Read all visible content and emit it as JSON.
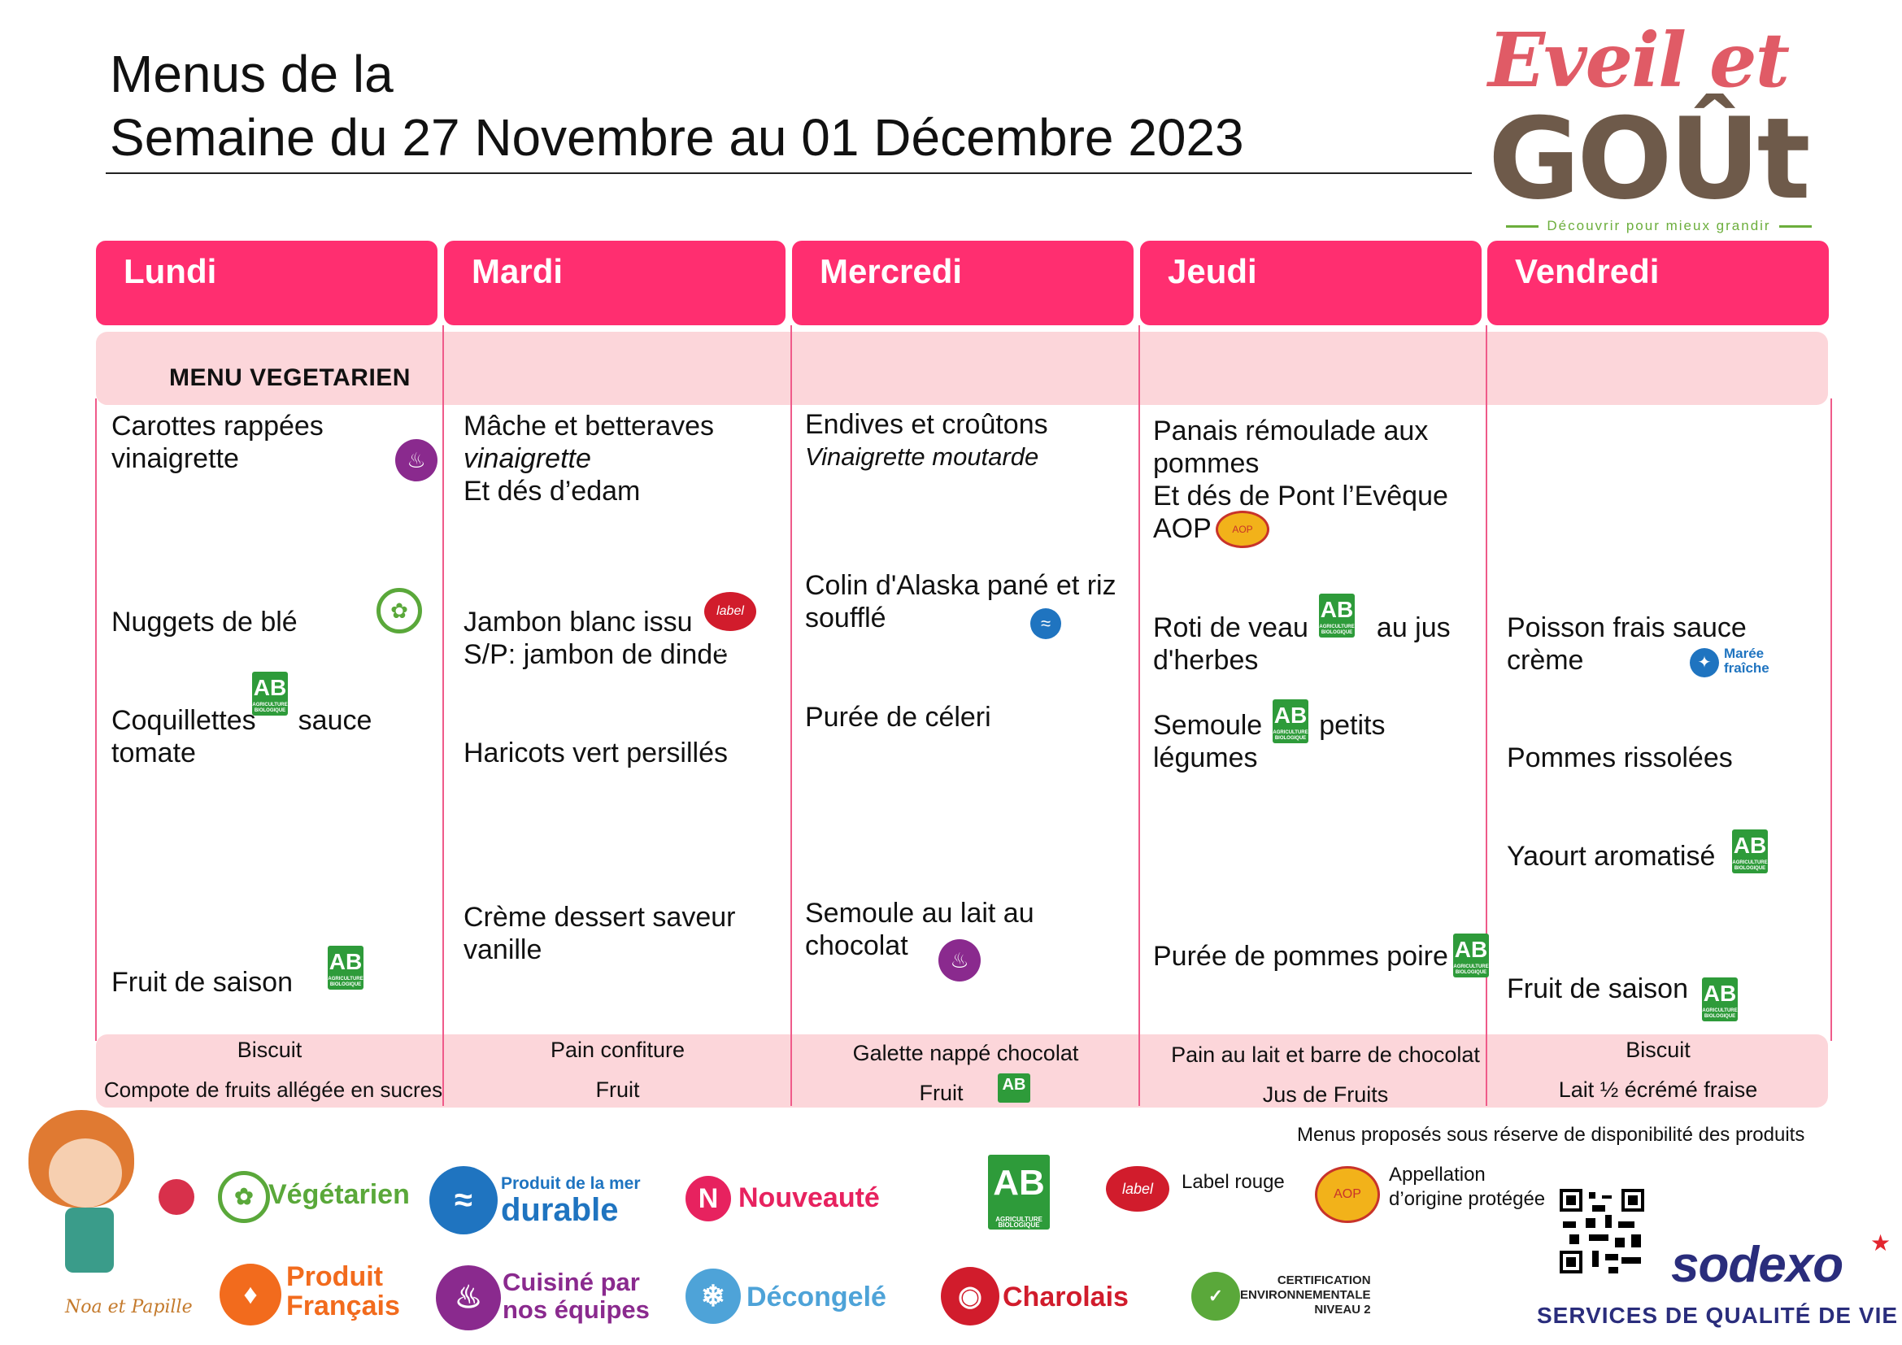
{
  "header": {
    "title_line1": "Menus de la",
    "title_line2": "Semaine du 27 Novembre au 01 Décembre 2023"
  },
  "logo": {
    "eveil": "Eveil et",
    "gout": "GOÛt",
    "tagline": "Découvrir pour mieux grandir"
  },
  "days": [
    "Lundi",
    "Mardi",
    "Mercredi",
    "Jeudi",
    "Vendredi"
  ],
  "vegetarian_label": "MENU VEGETARIEN",
  "menu": {
    "lundi": {
      "starter_1": "Carottes rappées",
      "starter_2": "vinaigrette",
      "main": "Nuggets de blé",
      "side_1a": "Coquillettes",
      "side_1b": "sauce",
      "side_2": "tomate",
      "dessert": "Fruit de saison"
    },
    "mardi": {
      "starter_1": "Mâche et betteraves",
      "starter_2": "vinaigrette",
      "starter_3": "Et dés d’edam",
      "main_1": "Jambon blanc issu",
      "main_2": "S/P: jambon de dinde",
      "side": "Haricots vert persillés",
      "dessert_1": "Crème dessert saveur",
      "dessert_2": "vanille"
    },
    "mercredi": {
      "starter_1": "Endives et croûtons",
      "starter_2": "Vinaigrette moutarde",
      "main_1": "Colin d'Alaska pané et riz",
      "main_2": "soufflé",
      "side": "Purée de céleri",
      "dessert_1": "Semoule au lait au",
      "dessert_2": "chocolat"
    },
    "jeudi": {
      "starter_1": "Panais rémoulade aux",
      "starter_2": "pommes",
      "starter_3": "Et dés de Pont l’Evêque",
      "starter_4": "AOP",
      "main_1a": "Roti de veau",
      "main_1b": "au jus",
      "main_2": "d'herbes",
      "side_1a": "Semoule",
      "side_1b": "petits",
      "side_2": "légumes",
      "dessert": "Purée de pommes poire"
    },
    "vendredi": {
      "main_1": "Poisson frais sauce",
      "main_2": "crème",
      "side": "Pommes rissolées",
      "dairy": "Yaourt aromatisé",
      "dessert": "Fruit de saison"
    }
  },
  "snacks": {
    "lundi": [
      "Biscuit",
      "Compote de fruits allégée en sucres"
    ],
    "mardi": [
      "Pain confiture",
      "Fruit"
    ],
    "mercredi": [
      "Galette nappé chocolat",
      "Fruit"
    ],
    "jeudi": [
      "Pain au lait et barre de chocolat",
      "Jus de Fruits"
    ],
    "vendredi": [
      "Biscuit",
      "Lait ½ écrémé fraise"
    ]
  },
  "icons": {
    "ab_text": "AB",
    "ab_sub": "AGRICULTURE BIOLOGIQUE",
    "label_rouge_text": "label Rouge",
    "aop_text": "AOP",
    "maree_line1": "Marée",
    "maree_line2": "fraîche"
  },
  "footer": {
    "note": "Menus proposés sous réserve de disponibilité des produits",
    "mascot": "Noa et Papille",
    "legend": {
      "vegetarien": "Végétarien",
      "mer_1": "Produit de la mer",
      "mer_2": "durable",
      "nouveaute": "Nouveauté",
      "label_rouge": "Label rouge",
      "aop_1": "Appellation",
      "aop_2": "d’origine protégée",
      "francais_1": "Produit",
      "francais_2": "Français",
      "cuisine_1": "Cuisiné par",
      "cuisine_2": "nos équipes",
      "decongele": "Décongelé",
      "charolais": "Charolais",
      "cert_1": "CERTIFICATION",
      "cert_2": "ENVIRONNEMENTALE",
      "cert_3": "NIVEAU 2"
    },
    "brand": "sodexo",
    "brand_tagline": "SERVICES DE QUALITÉ DE VIE"
  },
  "colors": {
    "header_pink": "#ff2e70",
    "band_pink": "#fcd6da",
    "column_line": "#ef5b8a",
    "bio_green": "#2e9b3a",
    "sodexo_blue": "#2a2d7c"
  }
}
